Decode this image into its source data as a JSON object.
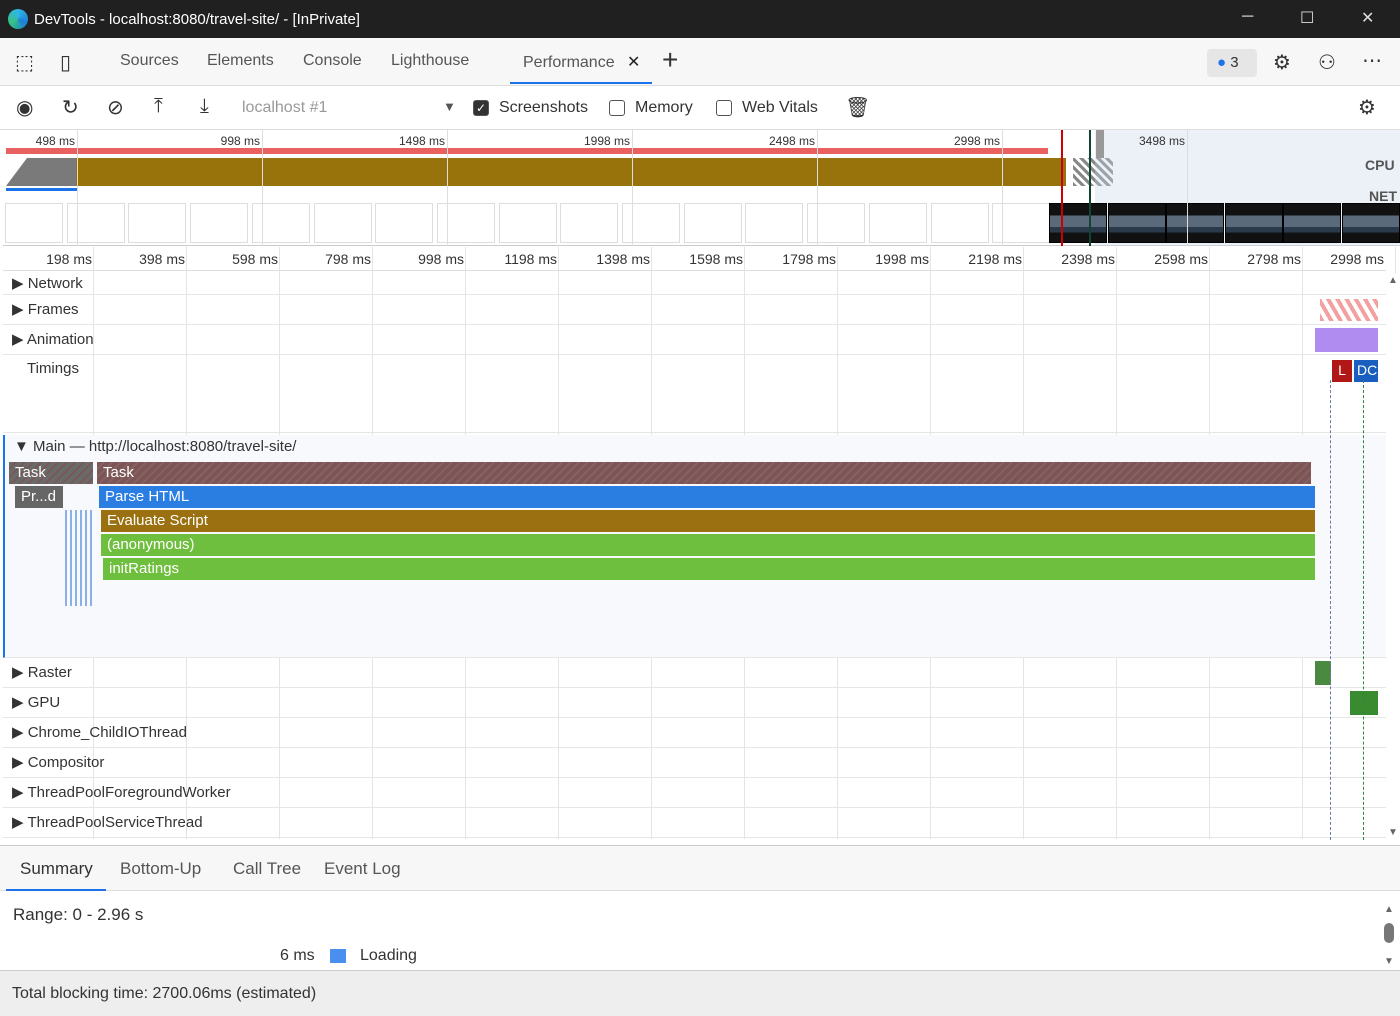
{
  "window": {
    "title": "DevTools - localhost:8080/travel-site/ - [InPrivate]",
    "minimize": "─",
    "maximize": "☐",
    "close": "✕"
  },
  "tabs": [
    {
      "label": "Sources"
    },
    {
      "label": "Elements"
    },
    {
      "label": "Console"
    },
    {
      "label": "Lighthouse"
    },
    {
      "label": "Performance",
      "active": true
    }
  ],
  "tab_close": "✕",
  "new_tab": "+",
  "issues_count": "3",
  "toolbar": {
    "target": "localhost #1",
    "screenshots_label": "Screenshots",
    "screenshots_checked": true,
    "memory_label": "Memory",
    "memory_checked": false,
    "webvitals_label": "Web Vitals",
    "webvitals_checked": false
  },
  "overview": {
    "ticks": [
      "498 ms",
      "998 ms",
      "1498 ms",
      "1998 ms",
      "2498 ms",
      "2998 ms",
      "3498 ms"
    ],
    "cpu_label": "CPU",
    "net_label": "NET"
  },
  "ruler": [
    "198 ms",
    "398 ms",
    "598 ms",
    "798 ms",
    "998 ms",
    "1198 ms",
    "1398 ms",
    "1598 ms",
    "1798 ms",
    "1998 ms",
    "2198 ms",
    "2398 ms",
    "2598 ms",
    "2798 ms",
    "2998 ms"
  ],
  "tracks": {
    "network": "Network",
    "frames": "Frames",
    "animation": "Animation",
    "timings": "Timings",
    "main": "Main — http://localhost:8080/travel-site/",
    "raster": "Raster",
    "gpu": "GPU",
    "childio": "Chrome_ChildIOThread",
    "compositor": "Compositor",
    "tpfw": "ThreadPoolForegroundWorker",
    "tpst": "ThreadPoolServiceThread"
  },
  "timings_markers": {
    "l": "L",
    "dcl": "DC"
  },
  "flame": {
    "task1": "Task",
    "task2": "Task",
    "prd": "Pr...d",
    "parse": "Parse HTML",
    "evaluate": "Evaluate Script",
    "anonymous": "(anonymous)",
    "init": "initRatings"
  },
  "colors": {
    "task": "#7a5656",
    "parse": "#2a7de1",
    "script": "#9a7010",
    "js": "#6fbf3f",
    "accent": "#1a73e8"
  },
  "bottom_tabs": [
    {
      "label": "Summary",
      "active": true
    },
    {
      "label": "Bottom-Up"
    },
    {
      "label": "Call Tree"
    },
    {
      "label": "Event Log"
    }
  ],
  "summary": {
    "range": "Range: 0 - 2.96 s",
    "loading_time": "6 ms",
    "loading_label": "Loading"
  },
  "footer": "Total blocking time: 2700.06ms (estimated)"
}
